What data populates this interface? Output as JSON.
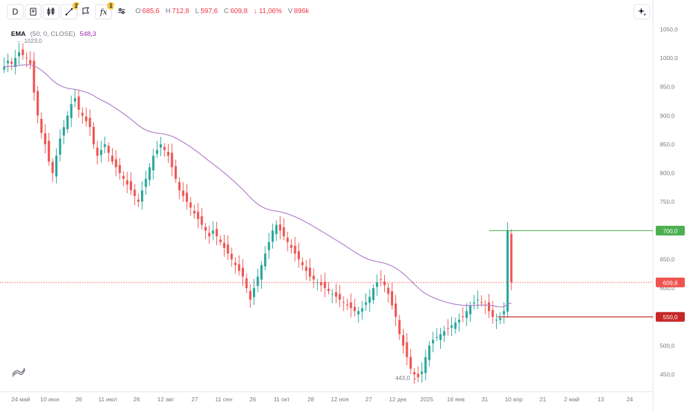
{
  "toolbar": {
    "interval": "D",
    "drawings_badge": "2",
    "indicators_badge": "1",
    "ohlc": {
      "o_label": "O",
      "o": "685,6",
      "h_label": "H",
      "h": "712,8",
      "l_label": "L",
      "l": "597,6",
      "c_label": "C",
      "c": "609,8",
      "change": "↓ 11,06%",
      "v_label": "V",
      "v": "896k"
    }
  },
  "indicator": {
    "name": "EMA",
    "params": "(50, 0, CLOSE)",
    "value": "548,3"
  },
  "colors": {
    "up": "#26a69a",
    "down": "#ef5350",
    "ema": "#b07cc6",
    "level_green": "#4caf50",
    "level_red": "#c62828"
  },
  "chart_data": {
    "type": "candlestick",
    "y_axis": {
      "ticks": [
        "1050,0",
        "1000,0",
        "950,0",
        "900,0",
        "850,0",
        "800,0",
        "750,0",
        "700,0",
        "650,0",
        "600,0",
        "550,0",
        "500,0",
        "450,0"
      ],
      "range": [
        420,
        1060
      ]
    },
    "x_axis": {
      "ticks": [
        "24 май",
        "10 июн",
        "26",
        "11 июл",
        "26",
        "12 авг",
        "27",
        "11 сен",
        "26",
        "11 окт",
        "28",
        "12 ноя",
        "27",
        "12 дек",
        "2025",
        "16 янв",
        "31",
        "10 апр",
        "21",
        "2 май",
        "13",
        "24"
      ]
    },
    "annotations": {
      "max_label": "1023,0",
      "min_label": "443,0"
    },
    "levels": [
      {
        "price": 700,
        "label": "700,0",
        "color": "green"
      },
      {
        "price": 550,
        "label": "550,0",
        "color": "red"
      }
    ],
    "last_price": {
      "price": 609.8,
      "label": "609,8"
    },
    "closes": [
      985,
      995,
      990,
      1000,
      1010,
      1005,
      1000,
      990,
      940,
      900,
      870,
      850,
      820,
      800,
      830,
      860,
      880,
      900,
      920,
      930,
      910,
      900,
      890,
      880,
      850,
      830,
      840,
      850,
      835,
      820,
      810,
      800,
      790,
      780,
      770,
      760,
      750,
      770,
      790,
      810,
      830,
      840,
      850,
      840,
      830,
      810,
      790,
      770,
      760,
      750,
      740,
      730,
      720,
      710,
      700,
      690,
      700,
      690,
      680,
      670,
      660,
      650,
      640,
      630,
      620,
      600,
      580,
      600,
      620,
      640,
      660,
      680,
      700,
      710,
      700,
      690,
      680,
      670,
      660,
      650,
      640,
      630,
      620,
      615,
      610,
      605,
      600,
      595,
      590,
      585,
      580,
      575,
      570,
      565,
      560,
      560,
      565,
      575,
      585,
      600,
      610,
      615,
      605,
      590,
      570,
      550,
      520,
      500,
      480,
      460,
      450,
      445,
      455,
      480,
      500,
      510,
      515,
      520,
      525,
      530,
      535,
      540,
      545,
      550,
      560,
      570,
      575,
      580,
      575,
      570,
      560,
      550,
      545,
      548,
      560,
      700,
      609.8
    ],
    "ema_labels_note": ""
  }
}
